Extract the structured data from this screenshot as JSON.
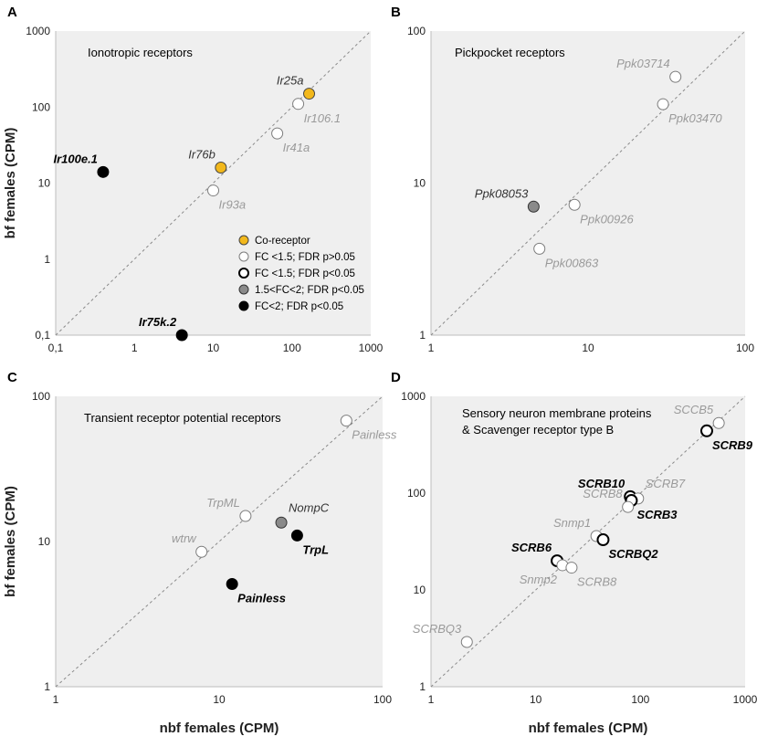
{
  "colors": {
    "coreceptor": "#f2b81c",
    "ns_fc15": "#ffffff",
    "sig_fc15": "#ffffff",
    "mid": "#8a8a8a",
    "strong": "#000000",
    "label_gray": "#9a9a9a",
    "label_dark": "#333333"
  },
  "legend": {
    "panel": "A",
    "items": [
      {
        "category": "coreceptor",
        "label": "Co-receptor"
      },
      {
        "category": "ns",
        "label": "FC <1.5; FDR p>0.05"
      },
      {
        "category": "sig",
        "label": "FC <1.5; FDR p<0.05"
      },
      {
        "category": "mid",
        "label": "1.5<FC<2; FDR p<0.05"
      },
      {
        "category": "strong",
        "label": "FC<2; FDR p<0.05"
      }
    ]
  },
  "x_label_bottom": "nbf females (CPM)",
  "y_label_left": "bf females (CPM)",
  "chart_data": [
    {
      "panel": "A",
      "type": "scatter",
      "title": "Ionotropic receptors",
      "xscale": "log",
      "yscale": "log",
      "xlim": [
        0.1,
        1000
      ],
      "ylim": [
        0.1,
        1000
      ],
      "xticks": [
        "0,1",
        "1",
        "10",
        "100",
        "1000"
      ],
      "yticks": [
        "0,1",
        "1",
        "10",
        "100",
        "1000"
      ],
      "xticks_values": [
        0.1,
        1,
        10,
        100,
        1000
      ],
      "yticks_values": [
        0.1,
        1,
        10,
        100,
        1000
      ],
      "show_x_label": false,
      "show_y_label": true,
      "points": [
        {
          "name": "Ir25a",
          "x": 165,
          "y": 150,
          "category": "coreceptor",
          "label_pos": "ul"
        },
        {
          "name": "Ir106.1",
          "x": 120,
          "y": 110,
          "category": "ns",
          "label_pos": "lr"
        },
        {
          "name": "Ir41a",
          "x": 65,
          "y": 45,
          "category": "ns",
          "label_pos": "lr"
        },
        {
          "name": "Ir76b",
          "x": 12.5,
          "y": 16,
          "category": "coreceptor",
          "label_pos": "ul"
        },
        {
          "name": "Ir93a",
          "x": 10,
          "y": 8,
          "category": "ns",
          "label_pos": "lr"
        },
        {
          "name": "Ir100e.1",
          "x": 0.4,
          "y": 14,
          "category": "strong",
          "label_pos": "ul"
        },
        {
          "name": "Ir75k.2",
          "x": 4,
          "y": 0.1,
          "category": "strong",
          "label_pos": "ul"
        }
      ]
    },
    {
      "panel": "B",
      "type": "scatter",
      "title": "Pickpocket receptors",
      "xscale": "log",
      "yscale": "log",
      "xlim": [
        1,
        100
      ],
      "ylim": [
        1,
        100
      ],
      "xticks": [
        "1",
        "10",
        "100"
      ],
      "yticks": [
        "1",
        "10",
        "100"
      ],
      "xticks_values": [
        1,
        10,
        100
      ],
      "yticks_values": [
        1,
        10,
        100
      ],
      "show_x_label": false,
      "show_y_label": false,
      "points": [
        {
          "name": "Ppk03714",
          "x": 36,
          "y": 50,
          "category": "ns",
          "label_pos": "ul"
        },
        {
          "name": "Ppk03470",
          "x": 30,
          "y": 33,
          "category": "ns",
          "label_pos": "lr"
        },
        {
          "name": "Ppk08053",
          "x": 4.5,
          "y": 7,
          "category": "mid",
          "label_pos": "ul"
        },
        {
          "name": "Ppk00926",
          "x": 8.2,
          "y": 7.2,
          "category": "ns",
          "label_pos": "lr"
        },
        {
          "name": "Ppk00863",
          "x": 4.9,
          "y": 3.7,
          "category": "ns",
          "label_pos": "lr"
        }
      ]
    },
    {
      "panel": "C",
      "type": "scatter",
      "title": "Transient receptor potential receptors",
      "xscale": "log",
      "yscale": "log",
      "xlim": [
        1,
        100
      ],
      "ylim": [
        1,
        100
      ],
      "xticks": [
        "1",
        "10",
        "100"
      ],
      "yticks": [
        "1",
        "10",
        "100"
      ],
      "xticks_values": [
        1,
        10,
        100
      ],
      "yticks_values": [
        1,
        10,
        100
      ],
      "show_x_label": true,
      "show_y_label": true,
      "points": [
        {
          "name": "Painless",
          "x": 60,
          "y": 68,
          "category": "ns",
          "label_pos": "lr"
        },
        {
          "name": "TrpML",
          "x": 14.5,
          "y": 15,
          "category": "ns",
          "label_pos": "ul"
        },
        {
          "name": "NompC",
          "x": 24,
          "y": 13.5,
          "category": "mid",
          "label_pos": "ur"
        },
        {
          "name": "TrpL",
          "x": 30,
          "y": 11,
          "category": "strong",
          "label_pos": "lr"
        },
        {
          "name": "wtrw",
          "x": 7.8,
          "y": 8.5,
          "category": "ns",
          "label_pos": "ul"
        },
        {
          "name": "Painless",
          "x": 12,
          "y": 5.1,
          "category": "strong",
          "label_pos": "lr"
        }
      ]
    },
    {
      "panel": "D",
      "type": "scatter",
      "title": "Sensory neuron membrane proteins",
      "title2": "& Scavenger receptor type B",
      "xscale": "log",
      "yscale": "log",
      "xlim": [
        1,
        1000
      ],
      "ylim": [
        1,
        1000
      ],
      "xticks": [
        "1",
        "10",
        "100",
        "1000"
      ],
      "yticks": [
        "1",
        "10",
        "100",
        "1000"
      ],
      "xticks_values": [
        1,
        10,
        100,
        1000
      ],
      "yticks_values": [
        1,
        10,
        100,
        1000
      ],
      "show_x_label": true,
      "show_y_label": false,
      "points": [
        {
          "name": "SCCB5",
          "x": 560,
          "y": 530,
          "category": "ns",
          "label_pos": "ul"
        },
        {
          "name": "SCRB9",
          "x": 430,
          "y": 440,
          "category": "sig",
          "label_pos": "lr"
        },
        {
          "name": "SCRB10",
          "x": 80,
          "y": 92,
          "category": "sig",
          "label_pos": "ul"
        },
        {
          "name": "SCRB7",
          "x": 95,
          "y": 88,
          "category": "ns",
          "label_pos": "ur"
        },
        {
          "name": "SCRB3",
          "x": 82,
          "y": 84,
          "category": "sig",
          "label_pos": "lr"
        },
        {
          "name": "SCRB8",
          "x": 76,
          "y": 72,
          "category": "ns",
          "label_pos": "ul"
        },
        {
          "name": "Snmp1",
          "x": 38,
          "y": 36,
          "category": "ns",
          "label_pos": "ul"
        },
        {
          "name": "SCRBQ2",
          "x": 44,
          "y": 33,
          "category": "sig",
          "label_pos": "lr"
        },
        {
          "name": "SCRB6",
          "x": 16,
          "y": 20,
          "category": "sig",
          "label_pos": "ul"
        },
        {
          "name": "Snmp2",
          "x": 18,
          "y": 18,
          "category": "ns",
          "label_pos": "ll"
        },
        {
          "name": "SCRB8",
          "x": 22,
          "y": 17,
          "category": "ns",
          "label_pos": "lr"
        },
        {
          "name": "SCRBQ3",
          "x": 2.2,
          "y": 2.9,
          "category": "ns",
          "label_pos": "ul"
        }
      ]
    }
  ]
}
